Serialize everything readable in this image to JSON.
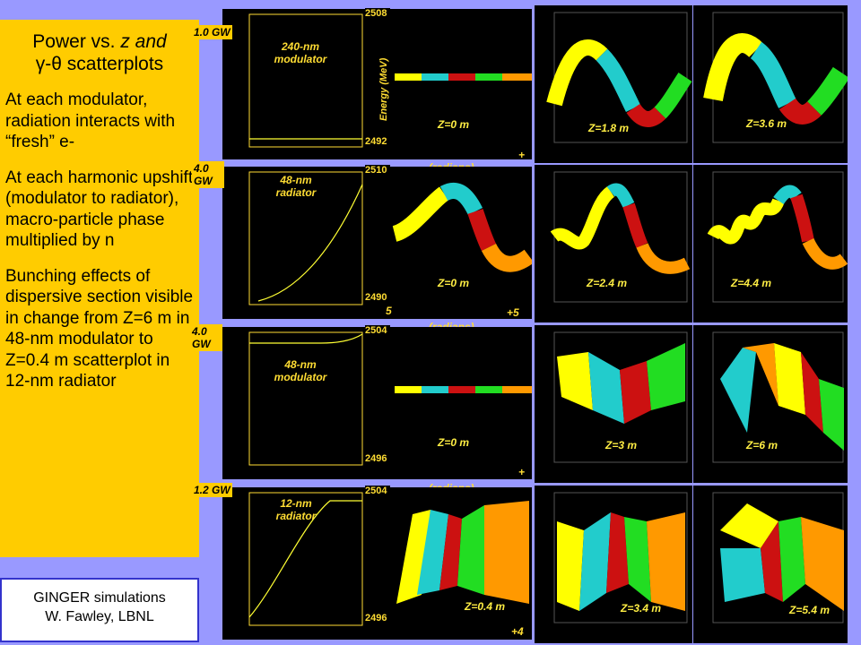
{
  "left": {
    "title_a": "Power vs. ",
    "title_z": "z",
    "title_and": " and",
    "title_b": "γ-θ scatterplots",
    "para1": "At each modulator, radiation interacts with “fresh” e-",
    "para2": "At each harmonic upshift (modulator to radiator), macro-particle phase multiplied by n",
    "para3": "Bunching effects of dispersive section visible in change from Z=6 m in 48-nm modulator to Z=0.4 m scatterplot in 12-nm radiator"
  },
  "credit": {
    "line1": "GINGER simulations",
    "line2": "W. Fawley, LBNL"
  },
  "rows": [
    {
      "power_tag": "1.0 GW",
      "wave": "240-nm modulator",
      "ytop": "2508",
      "ybot": "2492",
      "phase_l": "",
      "phase_r": "+",
      "phase_mid": "(radians)",
      "z_labels": [
        "Z=0 m",
        "Z=1.8 m",
        "Z=3.6 m"
      ]
    },
    {
      "power_tag": "4.0 GW",
      "wave": "48-nm radiator",
      "ytop": "2510",
      "ybot": "2490",
      "phase_l": "5",
      "phase_r": "+5",
      "phase_mid": "(radians)",
      "z_labels": [
        "Z=0 m",
        "Z=2.4 m",
        "Z=4.4 m"
      ]
    },
    {
      "power_tag": "4.0 GW",
      "wave": "48-nm modulator",
      "ytop": "2504",
      "ybot": "2496",
      "phase_l": "",
      "phase_r": "+",
      "phase_mid": "(radians)",
      "z_labels": [
        "Z=0 m",
        "Z=3 m",
        "Z=6 m"
      ]
    },
    {
      "power_tag": "1.2 GW",
      "wave": "12-nm radiator",
      "ytop": "2504",
      "ybot": "2496",
      "phase_l": "",
      "phase_r": "+4",
      "phase_mid": "",
      "z_labels": [
        "Z=0.4 m",
        "Z=3.4 m",
        "Z=5.4 m"
      ]
    }
  ],
  "energy_axis": "Energy (MeV)",
  "colors": {
    "yellow": "#ffff00",
    "cyan": "#22cccc",
    "red": "#cc1111",
    "green": "#22dd22",
    "orange": "#ff9900",
    "accent": "#ffcc00",
    "bg": "#9999ff"
  }
}
